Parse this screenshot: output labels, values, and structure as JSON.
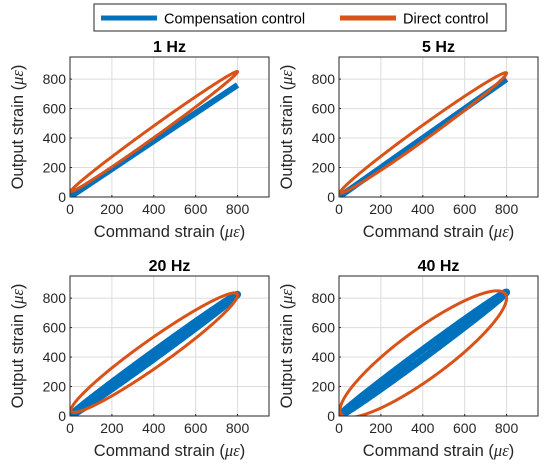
{
  "legend": {
    "placement": "top-center",
    "entries": [
      {
        "label": "Compensation control",
        "color": "#0072BD"
      },
      {
        "label": "Direct control",
        "color": "#D95319"
      }
    ]
  },
  "chart_data": [
    {
      "type": "line",
      "title": "1 Hz",
      "xlabel": "Command strain (",
      "ylabel": "Output strain (",
      "unit_symbol": "με",
      "xlim": [
        0,
        950
      ],
      "ylim": [
        0,
        950
      ],
      "xticks": [
        0,
        200,
        400,
        600,
        800
      ],
      "yticks": [
        0,
        200,
        400,
        600,
        800
      ],
      "grid": true,
      "series": [
        {
          "name": "Compensation control",
          "color": "#0072BD",
          "line_width": 6,
          "x": [
            5,
            800
          ],
          "y": [
            5,
            760
          ]
        },
        {
          "name": "Direct control",
          "color": "#D95319",
          "line_width": 3,
          "loop": {
            "x_range": [
              5,
              800
            ],
            "y_start": 40,
            "y_end": 850,
            "half_width": 40
          }
        }
      ]
    },
    {
      "type": "line",
      "title": "5 Hz",
      "xlabel": "Command strain (",
      "ylabel": "Output strain (",
      "unit_symbol": "με",
      "xlim": [
        0,
        950
      ],
      "ylim": [
        0,
        950
      ],
      "xticks": [
        0,
        200,
        400,
        600,
        800
      ],
      "yticks": [
        0,
        200,
        400,
        600,
        800
      ],
      "grid": true,
      "series": [
        {
          "name": "Compensation control",
          "color": "#0072BD",
          "line_width": 6,
          "x": [
            5,
            800
          ],
          "y": [
            5,
            800
          ]
        },
        {
          "name": "Direct control",
          "color": "#D95319",
          "line_width": 3,
          "loop": {
            "x_range": [
              5,
              800
            ],
            "y_start": 30,
            "y_end": 840,
            "half_width": 55
          }
        }
      ]
    },
    {
      "type": "line",
      "title": "20 Hz",
      "xlabel": "Command strain (",
      "ylabel": "Output strain (",
      "unit_symbol": "με",
      "xlim": [
        0,
        950
      ],
      "ylim": [
        0,
        950
      ],
      "xticks": [
        0,
        200,
        400,
        600,
        800
      ],
      "yticks": [
        0,
        200,
        400,
        600,
        800
      ],
      "grid": true,
      "series": [
        {
          "name": "Compensation control",
          "color": "#0072BD",
          "line_width": 7,
          "loop": {
            "x_range": [
              5,
              800
            ],
            "y_start": 5,
            "y_end": 825,
            "half_width": 25
          }
        },
        {
          "name": "Direct control",
          "color": "#D95319",
          "line_width": 3,
          "loop": {
            "x_range": [
              5,
              800
            ],
            "y_start": 40,
            "y_end": 820,
            "half_width": 110
          }
        }
      ]
    },
    {
      "type": "line",
      "title": "40 Hz",
      "xlabel": "Command strain (",
      "ylabel": "Output strain (",
      "unit_symbol": "με",
      "xlim": [
        0,
        950
      ],
      "ylim": [
        0,
        950
      ],
      "xticks": [
        0,
        200,
        400,
        600,
        800
      ],
      "yticks": [
        0,
        200,
        400,
        600,
        800
      ],
      "grid": true,
      "series": [
        {
          "name": "Compensation control",
          "color": "#0072BD",
          "line_width": 7,
          "loop": {
            "x_range": [
              5,
              800
            ],
            "y_start": 5,
            "y_end": 840,
            "half_width": 30
          }
        },
        {
          "name": "Direct control",
          "color": "#D95319",
          "line_width": 3,
          "loop": {
            "x_range": [
              5,
              800
            ],
            "y_start": 40,
            "y_end": 800,
            "half_width": 200
          }
        }
      ]
    }
  ]
}
